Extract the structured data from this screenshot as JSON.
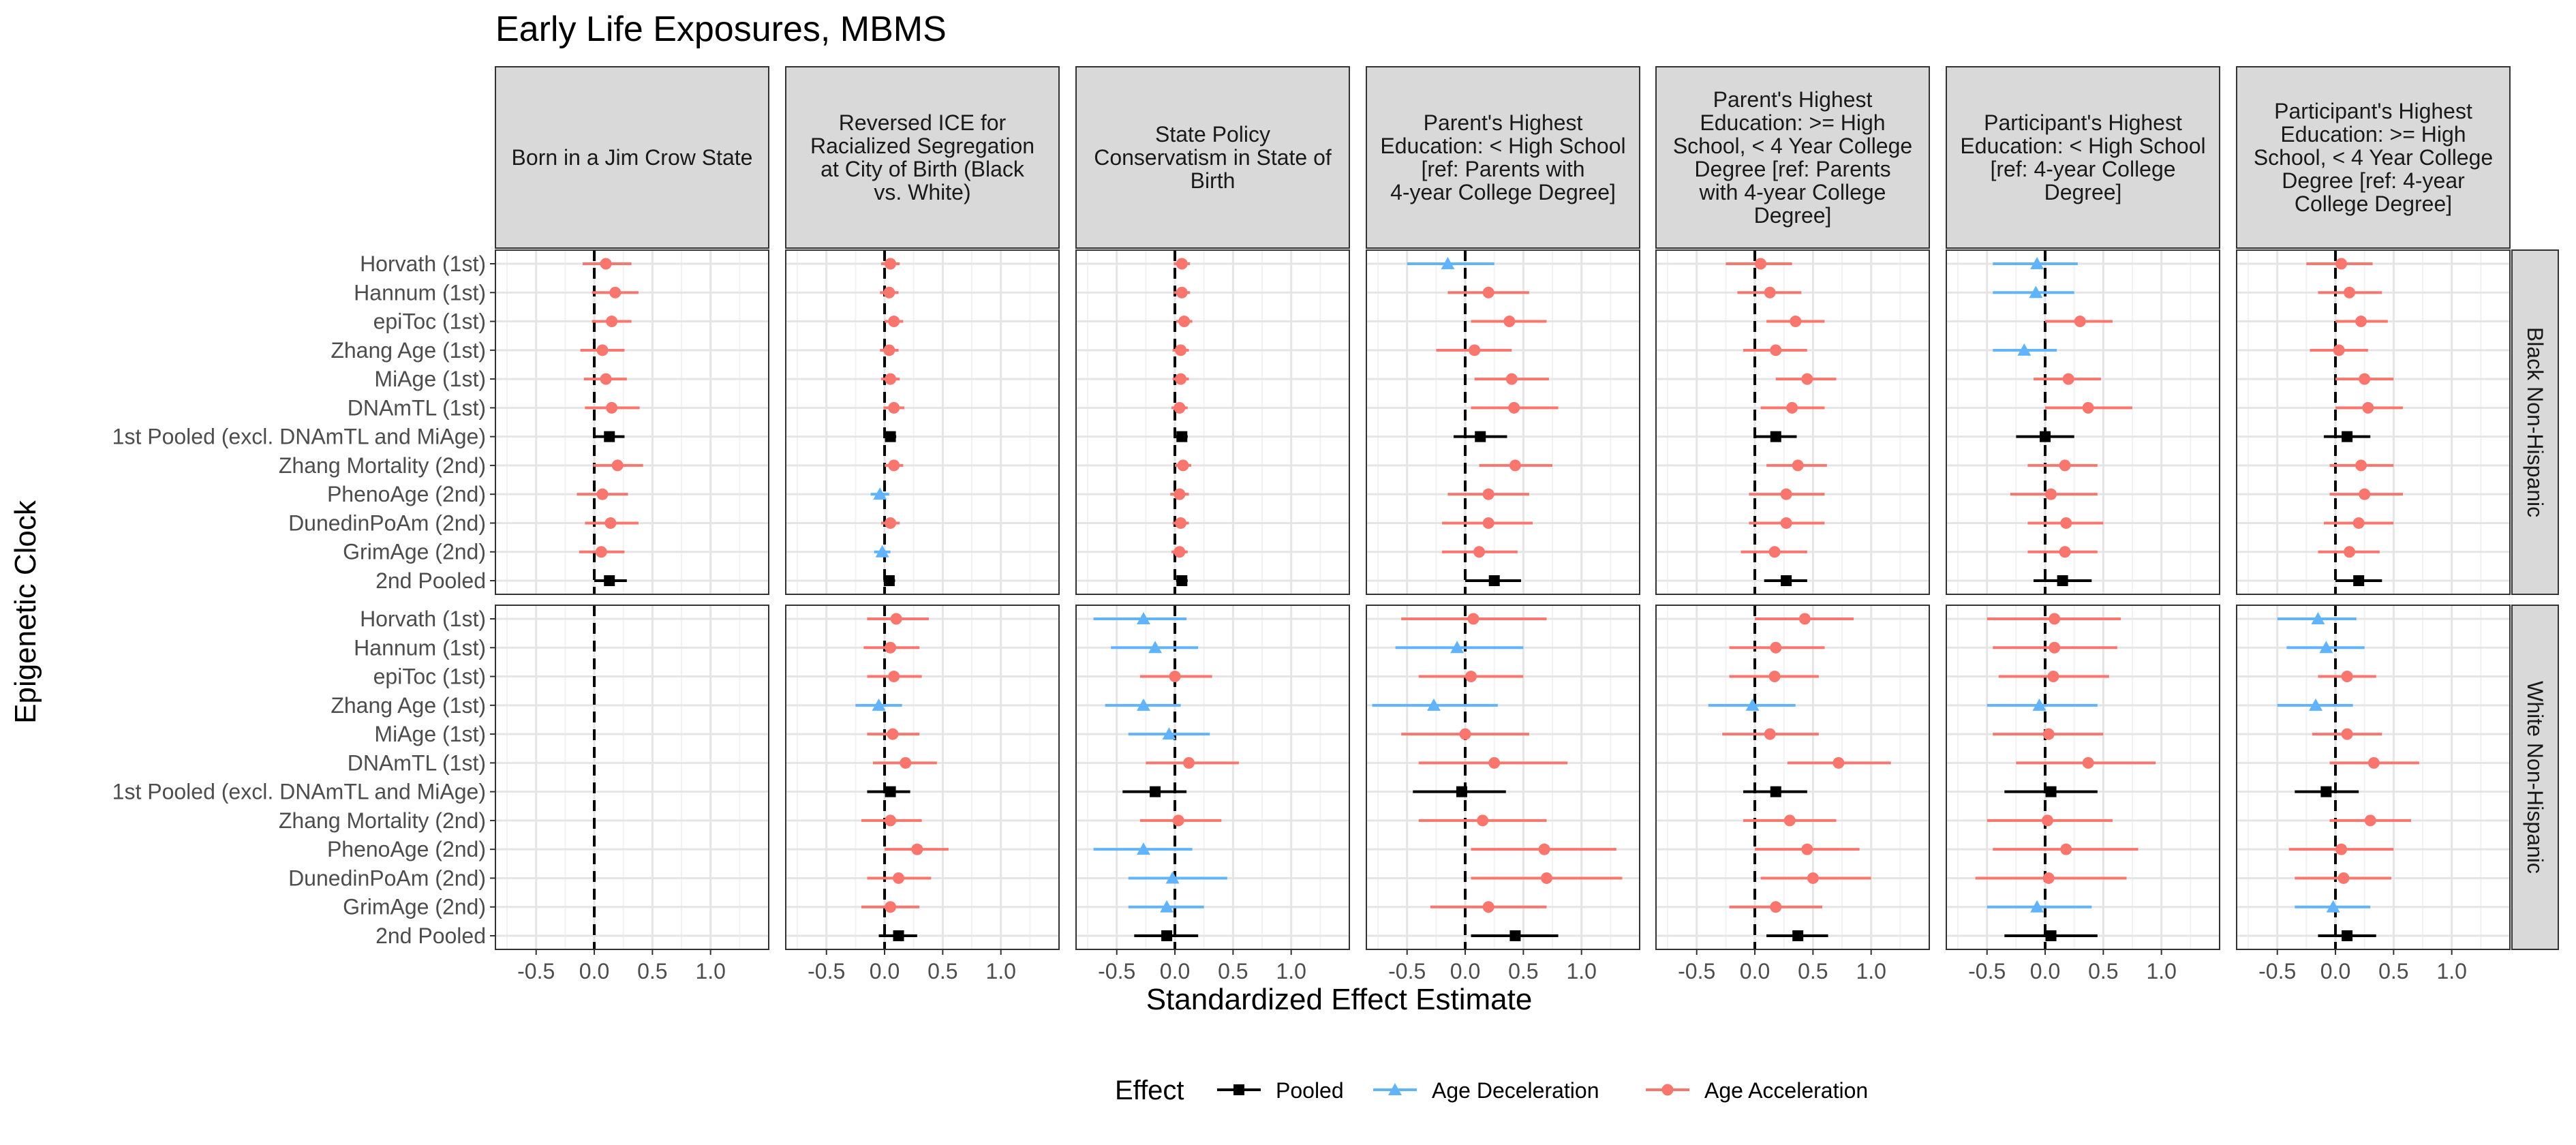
{
  "chart_data": {
    "type": "forest",
    "title": "Early Life Exposures, MBMS",
    "xlabel": "Standardized Effect Estimate",
    "ylabel": "Epigenetic Clock",
    "xlim": [
      -0.85,
      1.5
    ],
    "x_ticks": [
      "-0.5",
      "0.0",
      "0.5",
      "1.0"
    ],
    "grid": true,
    "legend": {
      "position": "bottom",
      "title": "Effect",
      "items": [
        {
          "key": "pooled",
          "label": "Pooled",
          "color": "#000000",
          "marker": "square"
        },
        {
          "key": "decel",
          "label": "Age Deceleration",
          "color": "#61b4fb",
          "marker": "triangle"
        },
        {
          "key": "accel",
          "label": "Age Acceleration",
          "color": "#f8766d",
          "marker": "circle"
        }
      ]
    },
    "clocks": [
      "Horvath (1st)",
      "Hannum (1st)",
      "epiToc (1st)",
      "Zhang Age (1st)",
      "MiAge (1st)",
      "DNAmTL (1st)",
      "1st Pooled (excl. DNAmTL and MiAge)",
      "Zhang Mortality (2nd)",
      "PhenoAge (2nd)",
      "DunedinPoAm (2nd)",
      "GrimAge (2nd)",
      "2nd Pooled"
    ],
    "exposures": [
      {
        "label": [
          "Born in a Jim Crow State"
        ]
      },
      {
        "label": [
          "Reversed ICE for",
          "Racialized Segregation",
          "at City of Birth (Black",
          "vs. White)"
        ]
      },
      {
        "label": [
          "State Policy",
          "Conservatism in State of",
          "Birth"
        ]
      },
      {
        "label": [
          "Parent's Highest",
          "Education: < High School",
          "[ref: Parents with",
          "4-year College Degree]"
        ]
      },
      {
        "label": [
          "Parent's Highest",
          "Education: >= High",
          "School, < 4 Year College",
          "Degree [ref: Parents",
          "with 4-year College",
          "Degree]"
        ]
      },
      {
        "label": [
          "Participant's Highest",
          "Education: < High School",
          "[ref: 4-year College",
          "Degree]"
        ]
      },
      {
        "label": [
          "Participant's Highest",
          "Education: >= High",
          "School, < 4 Year College",
          "Degree [ref: 4-year",
          "College Degree]"
        ]
      }
    ],
    "groups": [
      {
        "label": "Black Non-Hispanic",
        "panels": [
          {
            "est": [
              0.1,
              0.18,
              0.15,
              0.07,
              0.1,
              0.15,
              0.13,
              0.2,
              0.07,
              0.14,
              0.06,
              0.13
            ],
            "lo": [
              -0.1,
              -0.02,
              -0.02,
              -0.12,
              -0.09,
              -0.08,
              0.01,
              -0.01,
              -0.15,
              -0.08,
              -0.13,
              0.0
            ],
            "hi": [
              0.32,
              0.38,
              0.32,
              0.26,
              0.28,
              0.39,
              0.26,
              0.42,
              0.29,
              0.38,
              0.26,
              0.28
            ]
          },
          {
            "est": [
              0.05,
              0.04,
              0.08,
              0.04,
              0.05,
              0.08,
              0.05,
              0.08,
              -0.04,
              0.05,
              -0.02,
              0.04
            ],
            "lo": [
              -0.03,
              -0.04,
              0.0,
              -0.04,
              -0.03,
              -0.01,
              0.0,
              0.0,
              -0.12,
              -0.03,
              -0.09,
              -0.01
            ],
            "hi": [
              0.13,
              0.12,
              0.16,
              0.12,
              0.13,
              0.17,
              0.1,
              0.16,
              0.04,
              0.13,
              0.05,
              0.09
            ]
          },
          {
            "est": [
              0.06,
              0.06,
              0.08,
              0.05,
              0.05,
              0.04,
              0.06,
              0.07,
              0.04,
              0.05,
              0.04,
              0.06
            ],
            "lo": [
              -0.01,
              -0.01,
              0.01,
              -0.02,
              -0.02,
              -0.03,
              0.01,
              0.0,
              -0.04,
              -0.02,
              -0.03,
              0.01
            ],
            "hi": [
              0.13,
              0.13,
              0.15,
              0.12,
              0.12,
              0.11,
              0.11,
              0.14,
              0.12,
              0.12,
              0.11,
              0.11
            ]
          },
          {
            "est": [
              -0.15,
              0.2,
              0.38,
              0.08,
              0.4,
              0.42,
              0.13,
              0.43,
              0.2,
              0.2,
              0.12,
              0.25
            ],
            "lo": [
              -0.5,
              -0.15,
              0.05,
              -0.25,
              0.08,
              0.05,
              -0.1,
              0.12,
              -0.15,
              -0.2,
              -0.2,
              0.0
            ],
            "hi": [
              0.25,
              0.55,
              0.7,
              0.4,
              0.72,
              0.8,
              0.36,
              0.75,
              0.55,
              0.58,
              0.45,
              0.48
            ]
          },
          {
            "est": [
              0.05,
              0.13,
              0.35,
              0.18,
              0.45,
              0.32,
              0.18,
              0.37,
              0.27,
              0.27,
              0.17,
              0.27
            ],
            "lo": [
              -0.25,
              -0.15,
              0.1,
              -0.1,
              0.18,
              0.05,
              0.0,
              0.1,
              -0.05,
              -0.05,
              -0.12,
              0.08
            ],
            "hi": [
              0.32,
              0.4,
              0.6,
              0.45,
              0.7,
              0.6,
              0.36,
              0.62,
              0.6,
              0.6,
              0.45,
              0.45
            ]
          },
          {
            "est": [
              -0.07,
              -0.08,
              0.3,
              -0.18,
              0.2,
              0.37,
              0.0,
              0.17,
              0.05,
              0.18,
              0.17,
              0.15
            ],
            "lo": [
              -0.45,
              -0.45,
              0.0,
              -0.45,
              -0.1,
              0.0,
              -0.25,
              -0.15,
              -0.3,
              -0.15,
              -0.15,
              -0.1
            ],
            "hi": [
              0.28,
              0.25,
              0.58,
              0.1,
              0.48,
              0.75,
              0.25,
              0.45,
              0.45,
              0.5,
              0.45,
              0.4
            ]
          },
          {
            "est": [
              0.05,
              0.12,
              0.22,
              0.03,
              0.25,
              0.28,
              0.1,
              0.22,
              0.25,
              0.2,
              0.12,
              0.2
            ],
            "lo": [
              -0.25,
              -0.15,
              0.0,
              -0.22,
              0.0,
              0.0,
              -0.1,
              -0.05,
              -0.05,
              -0.1,
              -0.15,
              0.0
            ],
            "hi": [
              0.32,
              0.4,
              0.45,
              0.28,
              0.5,
              0.58,
              0.3,
              0.5,
              0.58,
              0.5,
              0.38,
              0.4
            ]
          }
        ],
        "effects": [
          [
            "accel",
            "accel",
            "accel",
            "accel",
            "accel",
            "accel",
            "pooled",
            "accel",
            "accel",
            "accel",
            "accel",
            "pooled"
          ],
          [
            "accel",
            "accel",
            "accel",
            "accel",
            "accel",
            "accel",
            "pooled",
            "accel",
            "decel",
            "accel",
            "decel",
            "pooled"
          ],
          [
            "accel",
            "accel",
            "accel",
            "accel",
            "accel",
            "accel",
            "pooled",
            "accel",
            "accel",
            "accel",
            "accel",
            "pooled"
          ],
          [
            "decel",
            "accel",
            "accel",
            "accel",
            "accel",
            "accel",
            "pooled",
            "accel",
            "accel",
            "accel",
            "accel",
            "pooled"
          ],
          [
            "accel",
            "accel",
            "accel",
            "accel",
            "accel",
            "accel",
            "pooled",
            "accel",
            "accel",
            "accel",
            "accel",
            "pooled"
          ],
          [
            "decel",
            "decel",
            "accel",
            "decel",
            "accel",
            "accel",
            "pooled",
            "accel",
            "accel",
            "accel",
            "accel",
            "pooled"
          ],
          [
            "accel",
            "accel",
            "accel",
            "accel",
            "accel",
            "accel",
            "pooled",
            "accel",
            "accel",
            "accel",
            "accel",
            "pooled"
          ]
        ]
      },
      {
        "label": "White Non-Hispanic",
        "panels": [
          {
            "est": [],
            "lo": [],
            "hi": []
          },
          {
            "est": [
              0.1,
              0.05,
              0.08,
              -0.05,
              0.07,
              0.18,
              0.05,
              0.05,
              0.28,
              0.12,
              0.05,
              0.12
            ],
            "lo": [
              -0.15,
              -0.18,
              -0.15,
              -0.25,
              -0.15,
              -0.1,
              -0.15,
              -0.2,
              0.0,
              -0.15,
              -0.2,
              -0.05
            ],
            "hi": [
              0.38,
              0.3,
              0.32,
              0.15,
              0.3,
              0.45,
              0.22,
              0.32,
              0.55,
              0.4,
              0.3,
              0.28
            ]
          },
          {
            "est": [
              -0.27,
              -0.17,
              0.0,
              -0.27,
              -0.05,
              0.12,
              -0.17,
              0.03,
              -0.27,
              -0.02,
              -0.07,
              -0.07
            ],
            "lo": [
              -0.7,
              -0.55,
              -0.3,
              -0.6,
              -0.4,
              -0.25,
              -0.45,
              -0.3,
              -0.7,
              -0.4,
              -0.4,
              -0.35
            ],
            "hi": [
              0.1,
              0.2,
              0.32,
              0.05,
              0.3,
              0.55,
              0.1,
              0.4,
              0.15,
              0.45,
              0.25,
              0.2
            ]
          },
          {
            "est": [
              0.07,
              -0.07,
              0.05,
              -0.27,
              0.0,
              0.25,
              -0.03,
              0.15,
              0.68,
              0.7,
              0.2,
              0.43
            ],
            "lo": [
              -0.55,
              -0.6,
              -0.4,
              -0.8,
              -0.55,
              -0.4,
              -0.45,
              -0.4,
              0.05,
              0.05,
              -0.3,
              0.05
            ],
            "hi": [
              0.7,
              0.5,
              0.5,
              0.28,
              0.55,
              0.88,
              0.35,
              0.7,
              1.3,
              1.35,
              0.7,
              0.8
            ]
          },
          {
            "est": [
              0.43,
              0.18,
              0.17,
              -0.02,
              0.13,
              0.72,
              0.18,
              0.3,
              0.45,
              0.5,
              0.18,
              0.37
            ],
            "lo": [
              0.0,
              -0.22,
              -0.22,
              -0.4,
              -0.28,
              0.28,
              -0.1,
              -0.1,
              0.0,
              0.05,
              -0.22,
              0.1
            ],
            "hi": [
              0.85,
              0.6,
              0.55,
              0.35,
              0.55,
              1.17,
              0.45,
              0.7,
              0.9,
              1.0,
              0.58,
              0.63
            ]
          },
          {
            "est": [
              0.08,
              0.08,
              0.07,
              -0.05,
              0.03,
              0.37,
              0.05,
              0.02,
              0.18,
              0.03,
              -0.07,
              0.05
            ],
            "lo": [
              -0.5,
              -0.45,
              -0.4,
              -0.5,
              -0.45,
              -0.25,
              -0.35,
              -0.5,
              -0.45,
              -0.6,
              -0.5,
              -0.35
            ],
            "hi": [
              0.65,
              0.62,
              0.55,
              0.45,
              0.5,
              0.95,
              0.45,
              0.58,
              0.8,
              0.7,
              0.4,
              0.45
            ]
          },
          {
            "est": [
              -0.15,
              -0.08,
              0.1,
              -0.17,
              0.1,
              0.33,
              -0.08,
              0.3,
              0.05,
              0.07,
              -0.02,
              0.1
            ],
            "lo": [
              -0.5,
              -0.42,
              -0.15,
              -0.5,
              -0.2,
              -0.05,
              -0.35,
              -0.05,
              -0.4,
              -0.35,
              -0.35,
              -0.15
            ],
            "hi": [
              0.18,
              0.25,
              0.35,
              0.15,
              0.4,
              0.72,
              0.2,
              0.65,
              0.5,
              0.48,
              0.3,
              0.35
            ]
          }
        ],
        "effects": [
          [
            "accel",
            "accel",
            "accel",
            "accel",
            "accel",
            "accel",
            "pooled",
            "accel",
            "accel",
            "accel",
            "accel",
            "pooled"
          ],
          [
            "accel",
            "accel",
            "accel",
            "decel",
            "accel",
            "accel",
            "pooled",
            "accel",
            "accel",
            "accel",
            "accel",
            "pooled"
          ],
          [
            "decel",
            "decel",
            "accel",
            "decel",
            "decel",
            "accel",
            "pooled",
            "accel",
            "decel",
            "decel",
            "decel",
            "pooled"
          ],
          [
            "accel",
            "decel",
            "accel",
            "decel",
            "accel",
            "accel",
            "pooled",
            "accel",
            "accel",
            "accel",
            "accel",
            "pooled"
          ],
          [
            "accel",
            "accel",
            "accel",
            "decel",
            "accel",
            "accel",
            "pooled",
            "accel",
            "accel",
            "accel",
            "accel",
            "pooled"
          ],
          [
            "accel",
            "accel",
            "accel",
            "decel",
            "accel",
            "accel",
            "pooled",
            "accel",
            "accel",
            "accel",
            "decel",
            "pooled"
          ],
          [
            "decel",
            "decel",
            "accel",
            "decel",
            "accel",
            "accel",
            "pooled",
            "accel",
            "accel",
            "accel",
            "decel",
            "pooled"
          ]
        ]
      }
    ]
  }
}
